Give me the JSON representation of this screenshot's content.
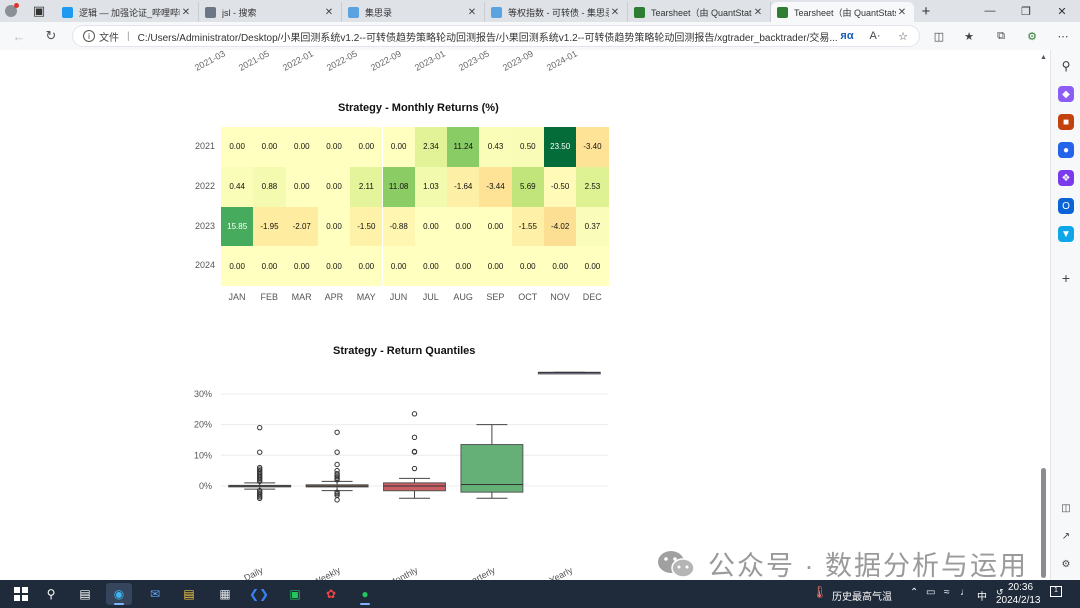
{
  "browser": {
    "tabs": [
      {
        "title": "逻辑 — 加强论证_哔哩哔哩",
        "icon_color": "#1d9bf0",
        "active": false
      },
      {
        "title": "jsl - 搜索",
        "icon_color": "#6b7785",
        "active": false
      },
      {
        "title": "集思录",
        "icon_color": "#5aa2e0",
        "active": false
      },
      {
        "title": "等权指数 - 可转债 - 集思录",
        "icon_color": "#5aa2e0",
        "active": false
      },
      {
        "title": "Tearsheet（由 QuantStats",
        "icon_color": "#2e7d32",
        "active": false
      },
      {
        "title": "Tearsheet（由 QuantStats",
        "icon_color": "#2e7d32",
        "active": true
      }
    ],
    "new_tab_label": "+",
    "file_label": "文件",
    "url": "C:/Users/Administrator/Desktop/小果回测系统v1.2--可转债趋势策略轮动回测报告/小果回测系统v1.2--可转债趋势策略轮动回测报告/xgtrader_backtrader/交易...",
    "read_aloud": "A·"
  },
  "top_chart": {
    "x_ticks": [
      "2021-03",
      "2021-05",
      "2022-01",
      "2022-05",
      "2022-09",
      "2023-01",
      "2023-05",
      "2023-09",
      "2024-01"
    ]
  },
  "chart_data": [
    {
      "type": "heatmap",
      "title": "Strategy - Monthly Returns (%)",
      "x": [
        "JAN",
        "FEB",
        "MAR",
        "APR",
        "MAY",
        "JUN",
        "JUL",
        "AUG",
        "SEP",
        "OCT",
        "NOV",
        "DEC"
      ],
      "y": [
        "2021",
        "2022",
        "2023",
        "2024"
      ],
      "values": [
        [
          0.0,
          0.0,
          0.0,
          0.0,
          0.0,
          0.0,
          2.34,
          11.24,
          0.43,
          0.5,
          23.5,
          -3.4
        ],
        [
          0.44,
          0.88,
          0.0,
          0.0,
          2.11,
          11.08,
          1.03,
          -1.64,
          -3.44,
          5.69,
          -0.5,
          2.53
        ],
        [
          15.85,
          -1.95,
          -2.07,
          0.0,
          -1.5,
          -0.88,
          0.0,
          0.0,
          0.0,
          -1.55,
          -4.02,
          0.37
        ],
        [
          0.0,
          0.0,
          0.0,
          0.0,
          0.0,
          0.0,
          0.0,
          0.0,
          0.0,
          0.0,
          0.0,
          0.0
        ]
      ],
      "labels": [
        [
          "0.00",
          "0.00",
          "0.00",
          "0.00",
          "0.00",
          "0.00",
          "2.34",
          "11.24",
          "0.43",
          "0.50",
          "23.50",
          "-3.40"
        ],
        [
          "0.44",
          "0.88",
          "0.00",
          "0.00",
          "2.11",
          "11.08",
          "1.03",
          "-1.64",
          "-3.44",
          "5.69",
          "-0.50",
          "2.53"
        ],
        [
          "15.85",
          "-1.95",
          "-2.07",
          "0.00",
          "-1.50",
          "-0.88",
          "0.00",
          "0.00",
          "0.00",
          "-1.55",
          "-4.02",
          "0.37"
        ],
        [
          "0.00",
          "0.00",
          "0.00",
          "0.00",
          "0.00",
          "0.00",
          "0.00",
          "0.00",
          "0.00",
          "0.00",
          "0.00",
          "0.00"
        ]
      ],
      "colormap": "RdYlGn"
    },
    {
      "type": "box",
      "title": "Strategy - Return Quantiles",
      "categories": [
        "Daily",
        "Weekly",
        "Monthly",
        "Quarterly",
        "Yearly"
      ],
      "ylim": [
        -5,
        35
      ],
      "yticks": [
        "0%",
        "10%",
        "20%",
        "30%"
      ],
      "yticks_values": [
        0,
        10,
        20,
        30
      ],
      "grid": true,
      "boxes": [
        {
          "name": "Daily",
          "min": -1,
          "q1": -0.2,
          "median": 0,
          "q3": 0.2,
          "max": 1,
          "outliers": [
            19,
            11,
            6,
            5.5,
            5,
            4.5,
            4,
            3.5,
            3,
            2.5,
            2,
            1.5,
            -1.5,
            -2,
            -2.5,
            -3,
            -3.5,
            -4
          ],
          "color": "#4c72b0"
        },
        {
          "name": "Weekly",
          "min": -1.5,
          "q1": -0.3,
          "median": 0,
          "q3": 0.4,
          "max": 1.5,
          "outliers": [
            17.5,
            11,
            7,
            5,
            4,
            3.5,
            3,
            2.5,
            2,
            -2,
            -2.5,
            -3,
            -4.5
          ],
          "color": "#dd8452"
        },
        {
          "name": "Monthly",
          "min": -4,
          "q1": -1.55,
          "median": 0,
          "q3": 1.03,
          "max": 2.5,
          "outliers": [
            23.5,
            15.85,
            11.24,
            11.08,
            5.69
          ],
          "color": "#c44e52"
        },
        {
          "name": "Quarterly",
          "min": -4,
          "q1": -2,
          "median": 0.5,
          "q3": 13.5,
          "max": 20,
          "outliers": [],
          "color": "#55a868"
        },
        {
          "name": "Yearly",
          "min": 37,
          "q1": 37,
          "median": 37,
          "q3": 37,
          "max": 37,
          "outliers": [],
          "color": "#8172b3"
        }
      ]
    }
  ],
  "watermark": {
    "text": "公众号 · 数据分析与运用"
  },
  "taskbar": {
    "weather_text": "历史最高气温",
    "time": "20:36",
    "date": "2024/2/13",
    "ime": "中",
    "notification_count": "1"
  }
}
